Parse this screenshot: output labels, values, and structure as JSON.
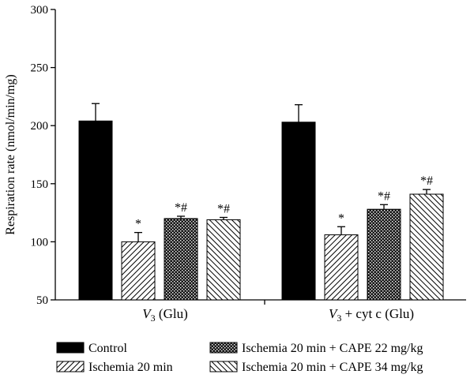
{
  "chart_data": {
    "type": "bar",
    "ylabel": "Respiration rate (nmol/min/mg)",
    "ylim": [
      50,
      300
    ],
    "yticks": [
      50,
      100,
      150,
      200,
      250,
      300
    ],
    "grid": false,
    "groups": [
      {
        "label_main": "V",
        "label_sub": "3",
        "label_rest": " (Glu)"
      },
      {
        "label_main": "V",
        "label_sub": "3",
        "label_rest": " + cyt c (Glu)"
      }
    ],
    "series": [
      {
        "name": "Control",
        "pattern": "solid",
        "values": [
          204,
          203
        ],
        "errors": [
          15,
          15
        ],
        "annotations": [
          "",
          ""
        ]
      },
      {
        "name": "Ischemia 20 min",
        "pattern": "diag-right",
        "values": [
          100,
          106
        ],
        "errors": [
          8,
          7
        ],
        "annotations": [
          "*",
          "*"
        ]
      },
      {
        "name": "Ischemia 20 min + CAPE 22 mg/kg",
        "pattern": "crosshatch",
        "values": [
          120,
          128
        ],
        "errors": [
          2,
          4
        ],
        "annotations": [
          "*#",
          "*#"
        ]
      },
      {
        "name": "Ischemia 20 min + CAPE 34 mg/kg",
        "pattern": "diag-left",
        "values": [
          119,
          141
        ],
        "errors": [
          2,
          4
        ],
        "annotations": [
          "*#",
          "*#"
        ]
      }
    ],
    "legend_position": "bottom"
  }
}
